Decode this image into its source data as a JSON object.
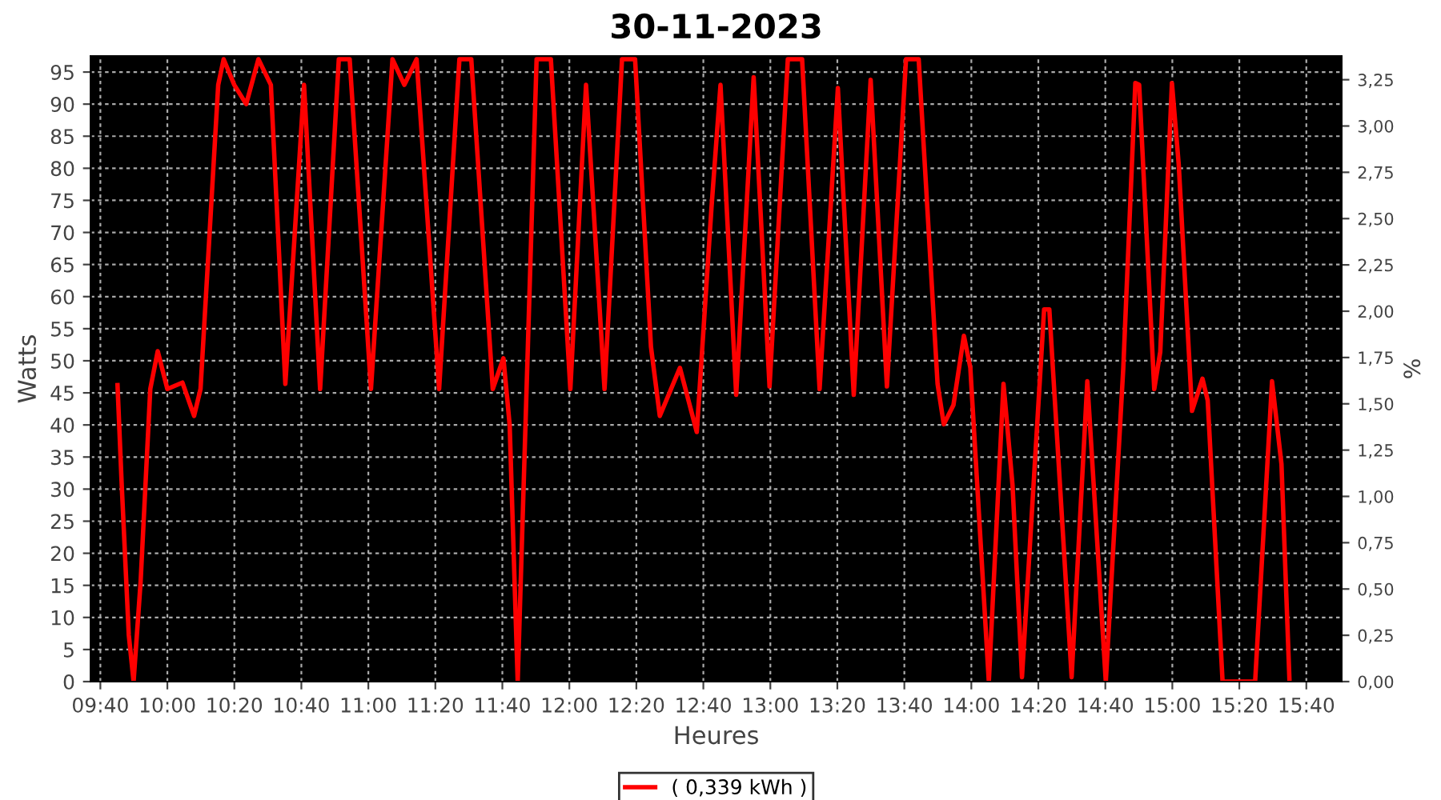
{
  "chart_data": {
    "type": "line",
    "title": "30-11-2023",
    "xlabel": "Heures",
    "ylabel": "Watts",
    "y2label": "%",
    "xlim": [
      9.619,
      15.842
    ],
    "xticks": [
      {
        "value": 9.6667,
        "label": "09:40"
      },
      {
        "value": 10,
        "label": "10:00"
      },
      {
        "value": 10.3333,
        "label": "10:20"
      },
      {
        "value": 10.6667,
        "label": "10:40"
      },
      {
        "value": 11,
        "label": "11:00"
      },
      {
        "value": 11.3333,
        "label": "11:20"
      },
      {
        "value": 11.6667,
        "label": "11:40"
      },
      {
        "value": 12,
        "label": "12:00"
      },
      {
        "value": 12.3333,
        "label": "12:20"
      },
      {
        "value": 12.6667,
        "label": "12:40"
      },
      {
        "value": 13,
        "label": "13:00"
      },
      {
        "value": 13.3333,
        "label": "13:20"
      },
      {
        "value": 13.6667,
        "label": "13:40"
      },
      {
        "value": 14,
        "label": "14:00"
      },
      {
        "value": 14.3333,
        "label": "14:20"
      },
      {
        "value": 14.6667,
        "label": "14:40"
      },
      {
        "value": 15,
        "label": "15:00"
      },
      {
        "value": 15.3333,
        "label": "15:20"
      },
      {
        "value": 15.6667,
        "label": "15:40"
      }
    ],
    "ylim": [
      0,
      97.5
    ],
    "yticks": [
      0,
      5,
      10,
      15,
      20,
      25,
      30,
      35,
      40,
      45,
      50,
      55,
      60,
      65,
      70,
      75,
      80,
      85,
      90,
      95
    ],
    "y2lim": [
      0,
      3.378
    ],
    "y2ticks": [
      {
        "value": 0,
        "label": "0,00"
      },
      {
        "value": 0.25,
        "label": "0,25"
      },
      {
        "value": 0.5,
        "label": "0,50"
      },
      {
        "value": 0.75,
        "label": "0,75"
      },
      {
        "value": 1,
        "label": "1,00"
      },
      {
        "value": 1.25,
        "label": "1,25"
      },
      {
        "value": 1.5,
        "label": "1,50"
      },
      {
        "value": 1.75,
        "label": "1,75"
      },
      {
        "value": 2,
        "label": "2,00"
      },
      {
        "value": 2.25,
        "label": "2,25"
      },
      {
        "value": 2.5,
        "label": "2,50"
      },
      {
        "value": 2.75,
        "label": "2,75"
      },
      {
        "value": 3,
        "label": "3,00"
      },
      {
        "value": 3.25,
        "label": "3,25"
      }
    ],
    "grid": true,
    "legend": "bottom",
    "marker": "none",
    "line_style": "solid",
    "series": [
      {
        "name": "( 0,339 kWh )",
        "color": "#ff0000",
        "x": [
          9.752,
          9.773,
          9.808,
          9.832,
          9.867,
          9.915,
          9.952,
          10.0,
          10.075,
          10.133,
          10.165,
          10.253,
          10.28,
          10.333,
          10.392,
          10.453,
          10.515,
          10.587,
          10.68,
          10.76,
          10.853,
          10.907,
          11.013,
          11.12,
          11.179,
          11.24,
          11.352,
          11.453,
          11.512,
          11.619,
          11.672,
          11.703,
          11.743,
          11.837,
          11.908,
          12.005,
          12.083,
          12.175,
          12.262,
          12.327,
          12.406,
          12.45,
          12.55,
          12.634,
          12.707,
          12.752,
          12.83,
          12.917,
          12.996,
          13.087,
          13.158,
          13.245,
          13.336,
          13.415,
          13.499,
          13.58,
          13.675,
          13.738,
          13.832,
          13.863,
          13.911,
          13.963,
          13.995,
          14.087,
          14.16,
          14.205,
          14.252,
          14.362,
          14.388,
          14.499,
          14.577,
          14.669,
          14.756,
          14.816,
          14.835,
          14.91,
          14.94,
          14.998,
          15.032,
          15.098,
          15.15,
          15.176,
          15.25,
          15.33,
          15.412,
          15.496,
          15.543,
          15.583
        ],
        "values": [
          46.2,
          30.6,
          7.3,
          0,
          15.6,
          45.6,
          51.5,
          45.6,
          46.6,
          41.4,
          45.6,
          93,
          97,
          93,
          90,
          97,
          93,
          46.4,
          93,
          45.6,
          97,
          97,
          45.6,
          97,
          93,
          97,
          45.6,
          97,
          97,
          45.6,
          50.4,
          40,
          0,
          97,
          97,
          45.6,
          93,
          45.6,
          97,
          97,
          52.2,
          41.4,
          48.9,
          38.9,
          73.8,
          93,
          44.7,
          94.2,
          46,
          97,
          97,
          45.6,
          92.5,
          44.7,
          93.8,
          46,
          97,
          97,
          46.4,
          40.1,
          43.1,
          53.9,
          48.9,
          0,
          46.4,
          30.6,
          0.7,
          58,
          58,
          0.7,
          46.8,
          0,
          48.9,
          93.3,
          93,
          45.6,
          51.4,
          93.3,
          80.5,
          42.2,
          47.2,
          43.8,
          0,
          0,
          0,
          46.8,
          33.9,
          0
        ]
      }
    ]
  }
}
